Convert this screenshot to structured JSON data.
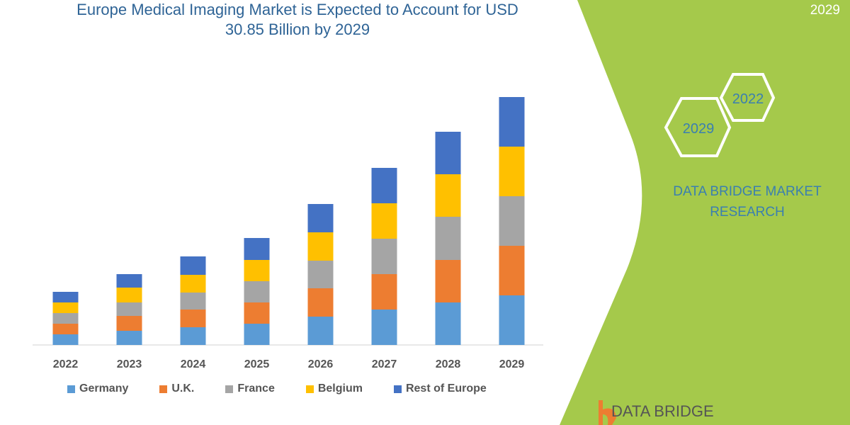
{
  "title_line1": "Europe Medical Imaging Market is Expected to Account for USD",
  "title_line2": "30.85 Billion by 2029",
  "corner_year": "2029",
  "hexagons": {
    "left": "2029",
    "right": "2022"
  },
  "brand_line1": "DATA BRIDGE MARKET",
  "brand_line2": "RESEARCH",
  "logo_text": "DATA BRIDGE",
  "colors": {
    "panel": "#A5C94B",
    "title": "#2F6496"
  },
  "chart_data": {
    "type": "bar",
    "stacked": true,
    "title": "Europe Medical Imaging Market is Expected to Account for USD 30.85 Billion by 2029",
    "categories": [
      "2022",
      "2023",
      "2024",
      "2025",
      "2026",
      "2027",
      "2028",
      "2029"
    ],
    "y_axis_shown": false,
    "ylim": [
      0,
      360
    ],
    "grid": false,
    "legend_placement": "bottom",
    "series": [
      {
        "name": "Germany",
        "color": "#5B9BD5",
        "values": [
          15,
          20,
          25,
          30,
          40,
          50,
          60,
          70
        ]
      },
      {
        "name": "U.K.",
        "color": "#ED7D31",
        "values": [
          15,
          21,
          25,
          30,
          40,
          50,
          60,
          70
        ]
      },
      {
        "name": "France",
        "color": "#A5A5A5",
        "values": [
          15,
          19,
          24,
          30,
          39,
          50,
          61,
          70
        ]
      },
      {
        "name": "Belgium",
        "color": "#FFC000",
        "values": [
          15,
          21,
          25,
          30,
          40,
          50,
          60,
          70
        ]
      },
      {
        "name": "Rest of Europe",
        "color": "#4472C4",
        "values": [
          15,
          19,
          26,
          31,
          40,
          50,
          60,
          70
        ]
      }
    ]
  }
}
